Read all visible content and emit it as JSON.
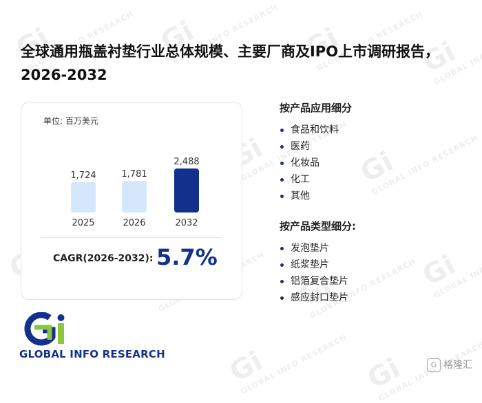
{
  "header": {
    "title": "全球通用瓶盖衬垫行业总体规模、主要厂商及IPO上市调研报告，2026-2032"
  },
  "card": {
    "unit_label": "单位: 百万美元",
    "cagr_label": "CAGR(2026-2032):",
    "cagr_value": "5.7%"
  },
  "chart_data": {
    "type": "bar",
    "categories": [
      "2025",
      "2026",
      "2032"
    ],
    "values": [
      1724,
      1781,
      2488
    ],
    "value_labels": [
      "1,724",
      "1,781",
      "2,488"
    ],
    "bar_colors": [
      "#d4e7fb",
      "#d4e7fb",
      "#13318c"
    ],
    "title": "",
    "xlabel": "",
    "ylabel": "",
    "unit": "百万美元",
    "ylim": [
      0,
      2488
    ]
  },
  "segments": {
    "by_application": {
      "heading": "按产品应用细分",
      "items": [
        "食品和饮料",
        "医药",
        "化妆品",
        "化工",
        "其他"
      ]
    },
    "by_type": {
      "heading": "按产品类型细分:",
      "items": [
        "发泡垫片",
        "纸浆垫片",
        "铝箔复合垫片",
        "感应封口垫片"
      ]
    }
  },
  "logo": {
    "mark": "Gi",
    "text": "GLOBAL INFO RESEARCH"
  },
  "watermark": {
    "mark": "Gi",
    "text": "GLOBAL INFO RESEARCH"
  },
  "corner": {
    "text": "格隆汇"
  },
  "colors": {
    "accent": "#13318c",
    "bar_light": "#d4e7fb",
    "logo_green": "#8cc63f"
  }
}
